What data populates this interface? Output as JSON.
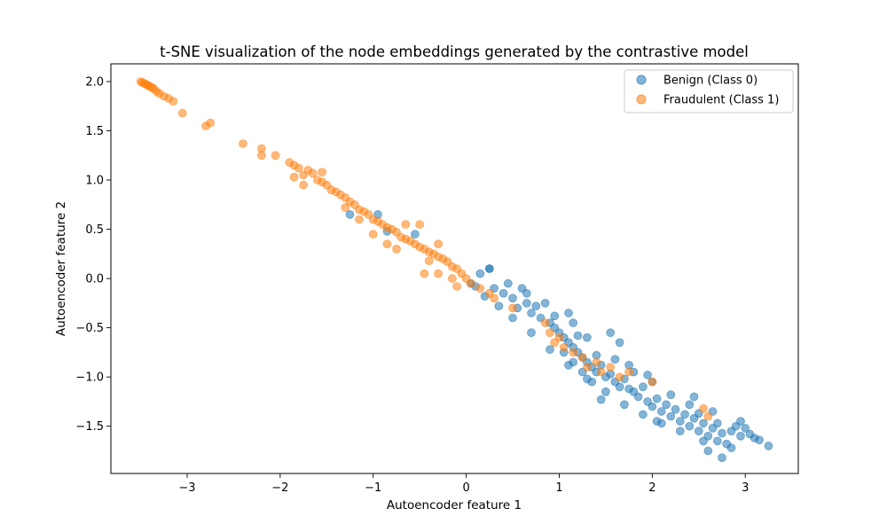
{
  "chart_data": {
    "type": "scatter",
    "title": "t-SNE visualization of the node embeddings generated by the contrastive model",
    "xlabel": "Autoencoder feature 1",
    "ylabel": "Autoencoder feature 2",
    "xlim": [
      -3.82,
      3.57
    ],
    "ylim": [
      -1.98,
      2.18
    ],
    "x_ticks": [
      -3,
      -2,
      -1,
      0,
      1,
      2,
      3
    ],
    "x_tick_labels": [
      "−3",
      "−2",
      "−1",
      "0",
      "1",
      "2",
      "3"
    ],
    "y_ticks": [
      -1.5,
      -1.0,
      -0.5,
      0.0,
      0.5,
      1.0,
      1.5,
      2.0
    ],
    "y_tick_labels": [
      "−1.5",
      "−1.0",
      "−0.5",
      "0.0",
      "0.5",
      "1.0",
      "1.5",
      "2.0"
    ],
    "grid": false,
    "legend_position": "top-right",
    "series": [
      {
        "name": "Benign (Class 0)",
        "color": "#1f77b4",
        "points": [
          [
            0.15,
            0.05
          ],
          [
            0.25,
            0.1
          ],
          [
            0.05,
            -0.05
          ],
          [
            0.3,
            -0.1
          ],
          [
            0.4,
            -0.15
          ],
          [
            0.5,
            -0.2
          ],
          [
            0.55,
            -0.3
          ],
          [
            0.65,
            -0.25
          ],
          [
            0.7,
            -0.35
          ],
          [
            0.8,
            -0.4
          ],
          [
            0.9,
            -0.45
          ],
          [
            0.95,
            -0.5
          ],
          [
            1.0,
            -0.55
          ],
          [
            1.05,
            -0.6
          ],
          [
            1.1,
            -0.65
          ],
          [
            1.15,
            -0.7
          ],
          [
            1.2,
            -0.75
          ],
          [
            1.25,
            -0.8
          ],
          [
            1.3,
            -0.85
          ],
          [
            1.35,
            -0.9
          ],
          [
            1.4,
            -0.95
          ],
          [
            1.45,
            -0.88
          ],
          [
            1.5,
            -1.0
          ],
          [
            1.55,
            -0.97
          ],
          [
            1.6,
            -1.05
          ],
          [
            1.65,
            -1.1
          ],
          [
            1.7,
            -1.02
          ],
          [
            1.75,
            -1.12
          ],
          [
            1.8,
            -1.15
          ],
          [
            1.85,
            -1.2
          ],
          [
            1.9,
            -1.1
          ],
          [
            1.95,
            -1.25
          ],
          [
            2.0,
            -1.3
          ],
          [
            2.05,
            -1.22
          ],
          [
            2.1,
            -1.35
          ],
          [
            2.15,
            -1.28
          ],
          [
            2.2,
            -1.4
          ],
          [
            2.25,
            -1.33
          ],
          [
            2.3,
            -1.45
          ],
          [
            2.35,
            -1.38
          ],
          [
            2.4,
            -1.5
          ],
          [
            2.45,
            -1.42
          ],
          [
            2.5,
            -1.55
          ],
          [
            2.55,
            -1.47
          ],
          [
            2.6,
            -1.6
          ],
          [
            2.65,
            -1.52
          ],
          [
            2.7,
            -1.65
          ],
          [
            2.75,
            -1.57
          ],
          [
            2.8,
            -1.68
          ],
          [
            2.85,
            -1.55
          ],
          [
            2.9,
            -1.5
          ],
          [
            2.95,
            -1.6
          ],
          [
            3.0,
            -1.52
          ],
          [
            3.05,
            -1.58
          ],
          [
            3.1,
            -1.62
          ],
          [
            3.15,
            -1.64
          ],
          [
            3.25,
            -1.7
          ],
          [
            2.75,
            -1.82
          ],
          [
            2.6,
            -1.75
          ],
          [
            1.45,
            -1.23
          ],
          [
            1.55,
            -0.55
          ],
          [
            1.65,
            -0.65
          ],
          [
            1.15,
            -0.45
          ],
          [
            0.65,
            -0.15
          ],
          [
            0.25,
            0.1
          ],
          [
            -0.55,
            0.45
          ],
          [
            -0.95,
            0.65
          ],
          [
            -1.25,
            0.65
          ],
          [
            -0.85,
            0.48
          ],
          [
            0.45,
            -0.05
          ],
          [
            0.6,
            -0.1
          ],
          [
            0.85,
            -0.25
          ],
          [
            1.1,
            -0.35
          ],
          [
            1.3,
            -0.6
          ],
          [
            1.4,
            -0.78
          ],
          [
            1.6,
            -0.82
          ],
          [
            1.8,
            -0.95
          ],
          [
            2.0,
            -1.05
          ],
          [
            2.2,
            -1.18
          ],
          [
            2.4,
            -1.28
          ],
          [
            2.5,
            -1.37
          ],
          [
            2.7,
            -1.47
          ],
          [
            2.3,
            -1.55
          ],
          [
            2.1,
            -1.47
          ],
          [
            1.9,
            -1.38
          ],
          [
            1.7,
            -1.28
          ],
          [
            1.5,
            -1.15
          ],
          [
            1.3,
            -1.02
          ],
          [
            1.1,
            -0.88
          ],
          [
            0.9,
            -0.72
          ],
          [
            0.7,
            -0.55
          ],
          [
            0.5,
            -0.4
          ],
          [
            0.35,
            -0.28
          ],
          [
            0.2,
            -0.18
          ],
          [
            0.1,
            -0.08
          ],
          [
            1.25,
            -0.95
          ],
          [
            1.35,
            -1.05
          ],
          [
            2.05,
            -1.45
          ],
          [
            2.55,
            -1.65
          ],
          [
            2.85,
            -1.72
          ],
          [
            2.95,
            -1.45
          ],
          [
            2.65,
            -1.35
          ],
          [
            2.45,
            -1.2
          ],
          [
            1.95,
            -0.98
          ],
          [
            1.75,
            -0.88
          ],
          [
            1.2,
            -0.58
          ],
          [
            0.95,
            -0.38
          ],
          [
            0.75,
            -0.28
          ],
          [
            1.05,
            -0.75
          ],
          [
            1.15,
            -0.85
          ]
        ]
      },
      {
        "name": "Fraudulent (Class 1)",
        "color": "#ff7f0e",
        "points": [
          [
            -3.5,
            2.0
          ],
          [
            -3.48,
            1.99
          ],
          [
            -3.46,
            1.98
          ],
          [
            -3.44,
            1.97
          ],
          [
            -3.42,
            1.96
          ],
          [
            -3.4,
            1.95
          ],
          [
            -3.38,
            1.94
          ],
          [
            -3.36,
            1.93
          ],
          [
            -3.33,
            1.9
          ],
          [
            -3.3,
            1.88
          ],
          [
            -3.25,
            1.85
          ],
          [
            -3.2,
            1.83
          ],
          [
            -3.15,
            1.8
          ],
          [
            -3.05,
            1.68
          ],
          [
            -2.8,
            1.55
          ],
          [
            -2.75,
            1.58
          ],
          [
            -2.4,
            1.37
          ],
          [
            -2.2,
            1.32
          ],
          [
            -2.2,
            1.25
          ],
          [
            -2.05,
            1.25
          ],
          [
            -1.9,
            1.18
          ],
          [
            -1.85,
            1.15
          ],
          [
            -1.8,
            1.12
          ],
          [
            -1.85,
            1.03
          ],
          [
            -1.75,
            1.05
          ],
          [
            -1.7,
            1.1
          ],
          [
            -1.65,
            1.07
          ],
          [
            -1.6,
            1.0
          ],
          [
            -1.55,
            0.98
          ],
          [
            -1.5,
            0.95
          ],
          [
            -1.45,
            0.9
          ],
          [
            -1.4,
            0.88
          ],
          [
            -1.35,
            0.85
          ],
          [
            -1.3,
            0.82
          ],
          [
            -1.25,
            0.78
          ],
          [
            -1.2,
            0.75
          ],
          [
            -1.15,
            0.7
          ],
          [
            -1.1,
            0.68
          ],
          [
            -1.05,
            0.65
          ],
          [
            -1.0,
            0.6
          ],
          [
            -0.95,
            0.58
          ],
          [
            -0.9,
            0.55
          ],
          [
            -0.85,
            0.52
          ],
          [
            -0.8,
            0.5
          ],
          [
            -0.75,
            0.47
          ],
          [
            -0.7,
            0.42
          ],
          [
            -0.65,
            0.4
          ],
          [
            -0.6,
            0.38
          ],
          [
            -0.55,
            0.35
          ],
          [
            -0.5,
            0.32
          ],
          [
            -0.45,
            0.3
          ],
          [
            -0.4,
            0.27
          ],
          [
            -0.35,
            0.25
          ],
          [
            -0.3,
            0.22
          ],
          [
            -0.25,
            0.2
          ],
          [
            -0.2,
            0.17
          ],
          [
            -0.15,
            0.12
          ],
          [
            -0.1,
            0.1
          ],
          [
            -0.05,
            0.05
          ],
          [
            0.0,
            0.0
          ],
          [
            0.05,
            -0.05
          ],
          [
            0.15,
            -0.1
          ],
          [
            0.25,
            -0.15
          ],
          [
            -0.3,
            0.05
          ],
          [
            -0.1,
            -0.08
          ],
          [
            -0.5,
            0.55
          ],
          [
            -0.85,
            0.35
          ],
          [
            -1.3,
            0.72
          ],
          [
            -1.55,
            1.08
          ],
          [
            -1.75,
            0.95
          ],
          [
            -1.0,
            0.45
          ],
          [
            -0.75,
            0.3
          ],
          [
            -0.3,
            0.35
          ],
          [
            0.5,
            -0.3
          ],
          [
            0.85,
            -0.45
          ],
          [
            0.9,
            -0.55
          ],
          [
            0.95,
            -0.65
          ],
          [
            1.0,
            -0.6
          ],
          [
            1.05,
            -0.7
          ],
          [
            1.15,
            -0.75
          ],
          [
            1.25,
            -0.8
          ],
          [
            1.3,
            -0.9
          ],
          [
            1.4,
            -0.85
          ],
          [
            1.45,
            -0.95
          ],
          [
            1.55,
            -0.9
          ],
          [
            1.65,
            -1.0
          ],
          [
            1.75,
            -0.95
          ],
          [
            2.0,
            -1.05
          ],
          [
            2.55,
            -1.32
          ],
          [
            2.6,
            -1.4
          ],
          [
            0.3,
            -0.2
          ],
          [
            -1.15,
            0.6
          ],
          [
            -0.65,
            0.55
          ],
          [
            -0.4,
            0.18
          ],
          [
            -0.15,
            0.0
          ],
          [
            -0.45,
            0.05
          ]
        ]
      }
    ]
  }
}
